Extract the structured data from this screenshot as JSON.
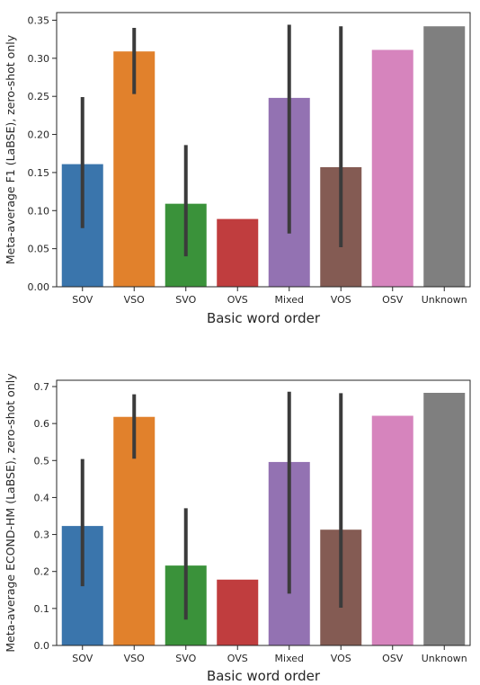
{
  "chart_data": [
    {
      "type": "bar",
      "categories": [
        "SOV",
        "VSO",
        "SVO",
        "OVS",
        "Mixed",
        "VOS",
        "OSV",
        "Unknown"
      ],
      "values": [
        0.161,
        0.309,
        0.109,
        0.089,
        0.248,
        0.157,
        0.311,
        0.342
      ],
      "ci_low": [
        0.077,
        0.253,
        0.04,
        null,
        0.07,
        0.052,
        null,
        null
      ],
      "ci_high": [
        0.249,
        0.34,
        0.186,
        null,
        0.344,
        0.342,
        null,
        null
      ],
      "colors": [
        "#3a75ac",
        "#e1812c",
        "#3a923a",
        "#c03d3e",
        "#9372b2",
        "#845b53",
        "#d684bd",
        "#7f7f7f"
      ],
      "xlabel": "Basic word order",
      "ylabel": "Meta-average F1 (LaBSE), zero-shot only",
      "ylim": [
        0,
        0.36
      ],
      "yticks": [
        "0.00",
        "0.05",
        "0.10",
        "0.15",
        "0.20",
        "0.25",
        "0.30",
        "0.35"
      ],
      "ytick_values": [
        0,
        0.05,
        0.1,
        0.15,
        0.2,
        0.25,
        0.3,
        0.35
      ],
      "grid": false
    },
    {
      "type": "bar",
      "categories": [
        "SOV",
        "VSO",
        "SVO",
        "OVS",
        "Mixed",
        "VOS",
        "OSV",
        "Unknown"
      ],
      "values": [
        0.323,
        0.618,
        0.216,
        0.178,
        0.496,
        0.313,
        0.621,
        0.683
      ],
      "ci_low": [
        0.16,
        0.505,
        0.07,
        null,
        0.14,
        0.102,
        null,
        null
      ],
      "ci_high": [
        0.504,
        0.679,
        0.371,
        null,
        0.686,
        0.682,
        null,
        null
      ],
      "colors": [
        "#3a75ac",
        "#e1812c",
        "#3a923a",
        "#c03d3e",
        "#9372b2",
        "#845b53",
        "#d684bd",
        "#7f7f7f"
      ],
      "xlabel": "Basic word order",
      "ylabel": "Meta-average ECOND-HM (LaBSE), zero-shot only",
      "ylim": [
        0,
        0.717
      ],
      "yticks": [
        "0.0",
        "0.1",
        "0.2",
        "0.3",
        "0.4",
        "0.5",
        "0.6",
        "0.7"
      ],
      "ytick_values": [
        0,
        0.1,
        0.2,
        0.3,
        0.4,
        0.5,
        0.6,
        0.7
      ],
      "grid": false
    }
  ]
}
